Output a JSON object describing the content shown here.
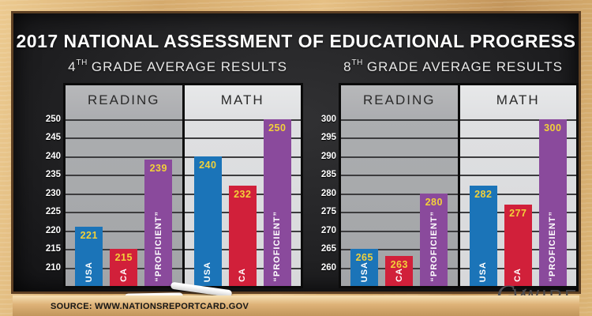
{
  "title": "2017 NATIONAL ASSESSMENT OF EDUCATIONAL PROGRESS",
  "source": "SOURCE: WWW.NATIONSREPORTCARD.GOV",
  "logo": {
    "g": "G",
    "v": "V",
    "wire": "WIRE"
  },
  "colors": {
    "usa_bar": "#1b74b8",
    "ca_bar": "#d1203a",
    "proficient_bar": "#8a4a9c",
    "value_label": "#f2d13a",
    "reading_panel": "#a8aaac",
    "math_panel": "#dfe0e2",
    "gridline": "#3c3c3e"
  },
  "chart_data": [
    {
      "type": "bar",
      "grade_number": "4",
      "grade_ordinal": "TH",
      "grade_text": "GRADE AVERAGE RESULTS",
      "ylabel": "",
      "ylim": [
        205,
        251
      ],
      "yticks": [
        250,
        245,
        240,
        235,
        230,
        225,
        220,
        215,
        210
      ],
      "sections": [
        {
          "label": "READING",
          "categories": [
            "USA",
            "CA",
            "“PROFICIENT”"
          ],
          "values": [
            221,
            215,
            239
          ]
        },
        {
          "label": "MATH",
          "categories": [
            "USA",
            "CA",
            "“PROFICIENT”"
          ],
          "values": [
            240,
            232,
            250
          ]
        }
      ]
    },
    {
      "type": "bar",
      "grade_number": "8",
      "grade_ordinal": "TH",
      "grade_text": "GRADE AVERAGE RESULTS",
      "ylabel": "",
      "ylim": [
        255,
        301
      ],
      "yticks": [
        300,
        295,
        290,
        285,
        280,
        275,
        270,
        265,
        260
      ],
      "sections": [
        {
          "label": "READING",
          "categories": [
            "USA",
            "CA",
            "“PROFICIENT”"
          ],
          "values": [
            265,
            263,
            280
          ]
        },
        {
          "label": "MATH",
          "categories": [
            "USA",
            "CA",
            "“PROFICIENT”"
          ],
          "values": [
            282,
            277,
            300
          ]
        }
      ]
    }
  ]
}
